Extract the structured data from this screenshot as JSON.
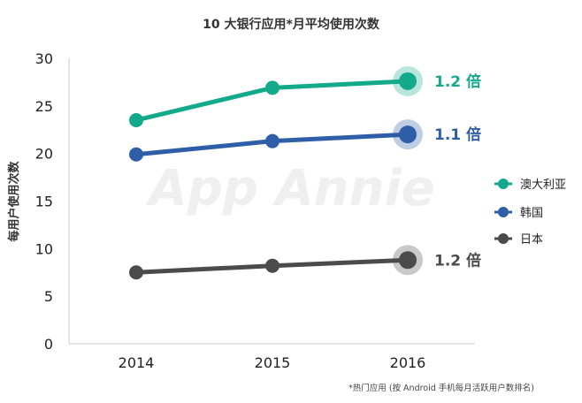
{
  "chart_data": {
    "type": "line",
    "title": "10 大银行应用*月平均使用次数",
    "ylabel": "每用户使用次数",
    "xlabel": "",
    "x": [
      "2014",
      "2015",
      "2016"
    ],
    "ylim": [
      0,
      30
    ],
    "yticks": [
      0,
      5,
      10,
      15,
      20,
      25,
      30
    ],
    "grid": false,
    "legend_position": "right",
    "series": [
      {
        "name": "澳大利亚",
        "color": "#13a98b",
        "values": [
          23.5,
          26.9,
          27.6
        ],
        "end_label": "1.2 倍"
      },
      {
        "name": "韩国",
        "color": "#2e5ea7",
        "values": [
          19.9,
          21.3,
          22.0
        ],
        "end_label": "1.1 倍"
      },
      {
        "name": "日本",
        "color": "#4b4b4b",
        "values": [
          7.5,
          8.2,
          8.8
        ],
        "end_label": "1.2 倍"
      }
    ],
    "watermark": "App Annie",
    "footnote": "*热门应用 (按 Android 手机每月活跃用户数排名)"
  }
}
